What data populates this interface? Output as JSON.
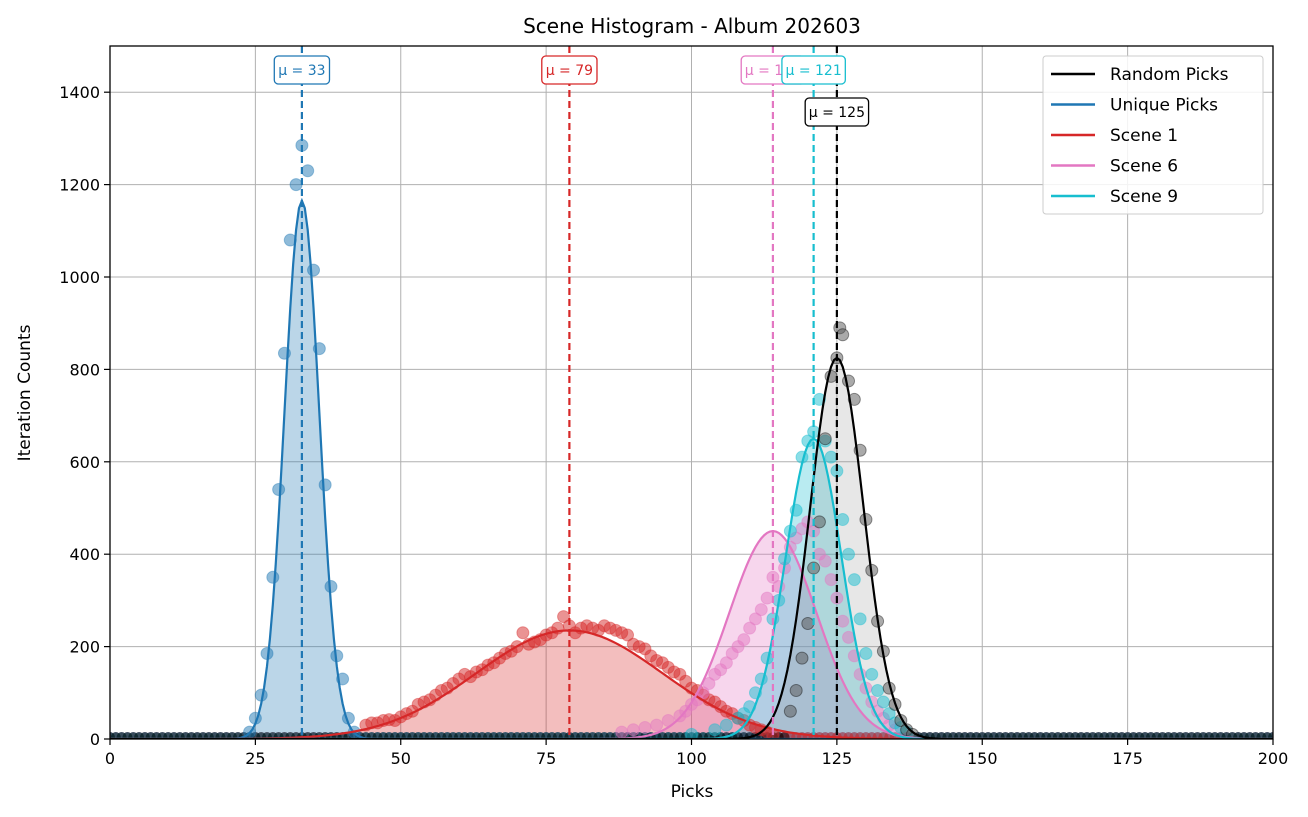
{
  "colors": {
    "random": "#000000",
    "unique": "#1f77b4",
    "scene1": "#d62728",
    "scene6": "#e377c2",
    "scene9": "#17becf",
    "grid": "#b0b0b0"
  },
  "chart_data": {
    "type": "line",
    "title": "Scene Histogram - Album 202603",
    "xlabel": "Picks",
    "ylabel": "Iteration Counts",
    "xlim": [
      0,
      200
    ],
    "ylim": [
      0,
      1500
    ],
    "xticks": [
      0,
      25,
      50,
      75,
      100,
      125,
      150,
      175,
      200
    ],
    "yticks": [
      0,
      200,
      400,
      600,
      800,
      1000,
      1200,
      1400
    ],
    "grid": true,
    "legend_position": "top-right",
    "legend": [
      "Random Picks",
      "Unique Picks",
      "Scene 1",
      "Scene 6",
      "Scene 9"
    ],
    "series": [
      {
        "name": "Random Picks",
        "color_key": "random",
        "mean": 125,
        "mean_label": "μ = 125",
        "curve_peak": 825,
        "curve_sigma": 4.6,
        "points": [
          [
            117,
            60
          ],
          [
            118,
            105
          ],
          [
            119,
            175
          ],
          [
            120,
            250
          ],
          [
            121,
            370
          ],
          [
            122,
            470
          ],
          [
            123,
            650
          ],
          [
            124,
            785
          ],
          [
            125,
            825
          ],
          [
            125.5,
            890
          ],
          [
            126,
            875
          ],
          [
            127,
            775
          ],
          [
            128,
            735
          ],
          [
            129,
            625
          ],
          [
            130,
            475
          ],
          [
            131,
            365
          ],
          [
            132,
            255
          ],
          [
            133,
            190
          ],
          [
            134,
            110
          ],
          [
            135,
            75
          ],
          [
            136,
            40
          ],
          [
            137,
            20
          ],
          [
            138,
            10
          ]
        ]
      },
      {
        "name": "Unique Picks",
        "color_key": "unique",
        "mean": 33,
        "mean_label": "μ = 33",
        "curve_peak": 1165,
        "curve_sigma": 3.0,
        "points": [
          [
            24,
            15
          ],
          [
            25,
            45
          ],
          [
            26,
            95
          ],
          [
            27,
            185
          ],
          [
            28,
            350
          ],
          [
            29,
            540
          ],
          [
            30,
            835
          ],
          [
            31,
            1080
          ],
          [
            32,
            1200
          ],
          [
            33,
            1285
          ],
          [
            34,
            1230
          ],
          [
            35,
            1015
          ],
          [
            36,
            845
          ],
          [
            37,
            550
          ],
          [
            38,
            330
          ],
          [
            39,
            180
          ],
          [
            40,
            130
          ],
          [
            41,
            45
          ],
          [
            42,
            15
          ]
        ]
      },
      {
        "name": "Scene 1",
        "color_key": "scene1",
        "mean": 79,
        "mean_label": "μ = 79",
        "curve_peak": 235,
        "curve_sigma": 16,
        "points": [
          [
            44,
            30
          ],
          [
            45,
            35
          ],
          [
            46,
            35
          ],
          [
            47,
            40
          ],
          [
            48,
            42
          ],
          [
            49,
            40
          ],
          [
            50,
            48
          ],
          [
            51,
            55
          ],
          [
            52,
            60
          ],
          [
            53,
            75
          ],
          [
            54,
            80
          ],
          [
            55,
            85
          ],
          [
            56,
            95
          ],
          [
            57,
            105
          ],
          [
            58,
            110
          ],
          [
            59,
            120
          ],
          [
            60,
            130
          ],
          [
            61,
            140
          ],
          [
            62,
            135
          ],
          [
            63,
            145
          ],
          [
            64,
            150
          ],
          [
            65,
            160
          ],
          [
            66,
            165
          ],
          [
            67,
            175
          ],
          [
            68,
            185
          ],
          [
            69,
            190
          ],
          [
            70,
            200
          ],
          [
            71,
            230
          ],
          [
            72,
            205
          ],
          [
            73,
            210
          ],
          [
            74,
            215
          ],
          [
            75,
            225
          ],
          [
            76,
            230
          ],
          [
            77,
            240
          ],
          [
            78,
            265
          ],
          [
            79,
            245
          ],
          [
            80,
            230
          ],
          [
            81,
            240
          ],
          [
            82,
            245
          ],
          [
            83,
            240
          ],
          [
            84,
            235
          ],
          [
            85,
            245
          ],
          [
            86,
            240
          ],
          [
            87,
            235
          ],
          [
            88,
            230
          ],
          [
            89,
            225
          ],
          [
            90,
            205
          ],
          [
            91,
            200
          ],
          [
            92,
            195
          ],
          [
            93,
            180
          ],
          [
            94,
            170
          ],
          [
            95,
            165
          ],
          [
            96,
            155
          ],
          [
            97,
            145
          ],
          [
            98,
            140
          ],
          [
            99,
            125
          ],
          [
            100,
            110
          ],
          [
            101,
            105
          ],
          [
            102,
            95
          ],
          [
            103,
            85
          ],
          [
            104,
            80
          ],
          [
            105,
            70
          ],
          [
            106,
            60
          ],
          [
            107,
            55
          ],
          [
            108,
            45
          ],
          [
            109,
            40
          ],
          [
            110,
            30
          ],
          [
            111,
            25
          ],
          [
            112,
            20
          ],
          [
            113,
            15
          ],
          [
            114,
            10
          ]
        ]
      },
      {
        "name": "Scene 6",
        "color_key": "scene6",
        "mean": 114,
        "mean_label": "μ = 114",
        "curve_peak": 450,
        "curve_sigma": 7.5,
        "points": [
          [
            88,
            15
          ],
          [
            90,
            20
          ],
          [
            92,
            25
          ],
          [
            94,
            30
          ],
          [
            96,
            40
          ],
          [
            98,
            50
          ],
          [
            99,
            60
          ],
          [
            100,
            75
          ],
          [
            101,
            85
          ],
          [
            102,
            100
          ],
          [
            103,
            120
          ],
          [
            104,
            140
          ],
          [
            105,
            150
          ],
          [
            106,
            165
          ],
          [
            107,
            185
          ],
          [
            108,
            200
          ],
          [
            109,
            215
          ],
          [
            110,
            240
          ],
          [
            111,
            260
          ],
          [
            112,
            280
          ],
          [
            113,
            305
          ],
          [
            114,
            350
          ],
          [
            115,
            330
          ],
          [
            116,
            370
          ],
          [
            117,
            415
          ],
          [
            118,
            435
          ],
          [
            119,
            455
          ],
          [
            120,
            470
          ],
          [
            121,
            450
          ],
          [
            122,
            400
          ],
          [
            123,
            385
          ],
          [
            124,
            345
          ],
          [
            125,
            305
          ],
          [
            126,
            255
          ],
          [
            127,
            220
          ],
          [
            128,
            180
          ],
          [
            129,
            140
          ],
          [
            130,
            110
          ],
          [
            131,
            80
          ],
          [
            132,
            60
          ],
          [
            133,
            45
          ],
          [
            134,
            30
          ],
          [
            135,
            20
          ]
        ]
      },
      {
        "name": "Scene 9",
        "color_key": "scene9",
        "mean": 121,
        "mean_label": "μ = 121",
        "curve_peak": 650,
        "curve_sigma": 4.8,
        "points": [
          [
            100,
            10
          ],
          [
            104,
            20
          ],
          [
            106,
            30
          ],
          [
            108,
            45
          ],
          [
            109,
            55
          ],
          [
            110,
            70
          ],
          [
            111,
            100
          ],
          [
            112,
            130
          ],
          [
            113,
            175
          ],
          [
            114,
            260
          ],
          [
            115,
            300
          ],
          [
            116,
            390
          ],
          [
            117,
            450
          ],
          [
            118,
            495
          ],
          [
            119,
            610
          ],
          [
            120,
            645
          ],
          [
            121,
            665
          ],
          [
            122,
            735
          ],
          [
            123,
            645
          ],
          [
            124,
            610
          ],
          [
            125,
            580
          ],
          [
            126,
            475
          ],
          [
            127,
            400
          ],
          [
            128,
            345
          ],
          [
            129,
            260
          ],
          [
            130,
            185
          ],
          [
            131,
            140
          ],
          [
            132,
            105
          ],
          [
            133,
            80
          ],
          [
            134,
            55
          ],
          [
            135,
            35
          ],
          [
            136,
            25
          ],
          [
            137,
            15
          ]
        ]
      }
    ]
  }
}
